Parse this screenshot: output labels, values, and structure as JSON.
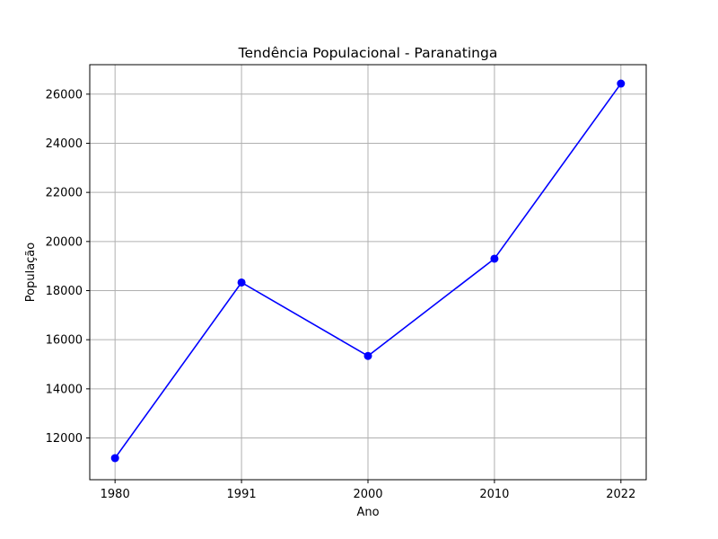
{
  "chart_data": {
    "type": "line",
    "title": "Tendência Populacional - Paranatinga",
    "xlabel": "Ano",
    "ylabel": "População",
    "categories": [
      "1980",
      "1991",
      "2000",
      "2010",
      "2022"
    ],
    "series": [
      {
        "values": [
          11180,
          18330,
          15340,
          19300,
          26430
        ],
        "color": "#0000ff",
        "marker": "circle"
      }
    ],
    "ylim": [
      10300,
      27200
    ],
    "yticks": [
      12000,
      14000,
      16000,
      18000,
      20000,
      22000,
      24000,
      26000
    ],
    "ytick_labels": [
      "12000",
      "14000",
      "16000",
      "18000",
      "20000",
      "22000",
      "24000",
      "26000"
    ],
    "grid": true,
    "grid_color": "#b0b0b0",
    "legend": false
  }
}
